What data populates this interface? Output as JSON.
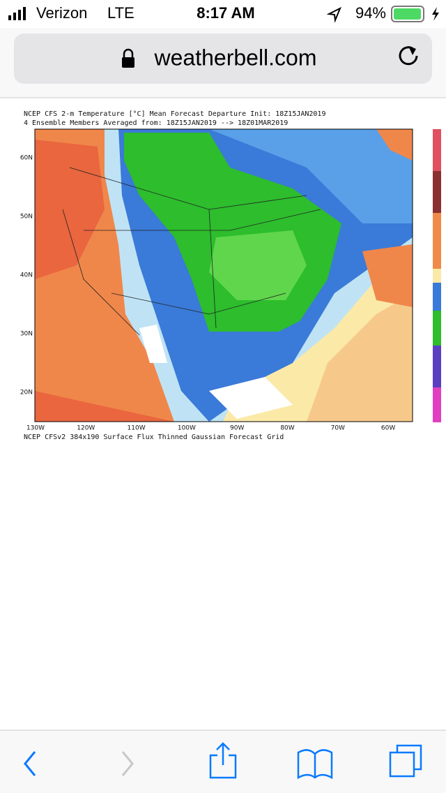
{
  "status_bar": {
    "carrier": "Verizon",
    "network": "LTE",
    "time": "8:17 AM",
    "battery": "94%"
  },
  "address_bar": {
    "url": "weatherbell.com"
  },
  "map": {
    "title_line1": "NCEP CFS 2-m Temperature [°C] Mean Forecast Departure Init: 18Z15JAN2019",
    "title_line2": "4 Ensemble Members Averaged from: 18Z15JAN2019 --> 18Z01MAR2019",
    "lat_labels": [
      "60N",
      "50N",
      "40N",
      "30N",
      "20N"
    ],
    "lon_labels": [
      "130W",
      "120W",
      "110W",
      "100W",
      "90W",
      "80W",
      "70W",
      "60W"
    ],
    "footer": "NCEP CFSv2 384x190 Surface Flux Thinned Gaussian Forecast Grid"
  }
}
